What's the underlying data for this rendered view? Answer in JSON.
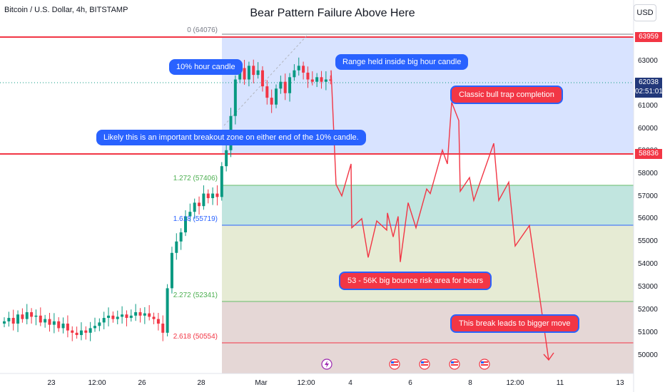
{
  "header": {
    "symbol": "Bitcoin / U.S. Dollar, 4h, BITSTAMP",
    "title": "Bear Pattern Failure Above Here",
    "currency": "USD"
  },
  "chart_data": {
    "type": "candlestick",
    "title": "Bear Pattern Failure Above Here",
    "ylim": [
      49500,
      64900
    ],
    "y_ticks": [
      50000,
      51000,
      52000,
      53000,
      54000,
      55000,
      56000,
      57000,
      58000,
      59000,
      60000,
      61000,
      62000,
      63000
    ],
    "x_ticks": [
      "23",
      "12:00",
      "26",
      "28",
      "Mar",
      "12:00",
      "4",
      "6",
      "8",
      "12:00",
      "11",
      "13"
    ],
    "price_lines": [
      {
        "label": "63959",
        "value": 63959
      },
      {
        "label": "58836",
        "value": 58836
      }
    ],
    "current_price": {
      "value": "62038",
      "countdown": "02:51:01"
    },
    "fib_levels": [
      {
        "label": "0 (64076)",
        "value": 64076
      },
      {
        "label": "1.272 (57406)",
        "value": 57406
      },
      {
        "label": "1.618 (55719)",
        "value": 55719
      },
      {
        "label": "2.272 (52341)",
        "value": 52341
      },
      {
        "label": "2.618 (50554)",
        "value": 50554
      }
    ],
    "projection_path": [
      {
        "x": 464,
        "price": 62500
      },
      {
        "x": 471,
        "price": 57500
      },
      {
        "x": 479,
        "price": 57000
      },
      {
        "x": 492,
        "price": 58400
      },
      {
        "x": 493,
        "price": 55600
      },
      {
        "x": 507,
        "price": 56000
      },
      {
        "x": 516,
        "price": 54300
      },
      {
        "x": 528,
        "price": 55900
      },
      {
        "x": 542,
        "price": 55500
      },
      {
        "x": 543,
        "price": 56250
      },
      {
        "x": 551,
        "price": 55200
      },
      {
        "x": 558,
        "price": 56100
      },
      {
        "x": 561,
        "price": 54100
      },
      {
        "x": 572,
        "price": 56700
      },
      {
        "x": 583,
        "price": 55600
      },
      {
        "x": 598,
        "price": 57300
      },
      {
        "x": 603,
        "price": 57100
      },
      {
        "x": 620,
        "price": 59000
      },
      {
        "x": 627,
        "price": 58400
      },
      {
        "x": 633,
        "price": 61100
      },
      {
        "x": 643,
        "price": 60300
      },
      {
        "x": 645,
        "price": 57200
      },
      {
        "x": 658,
        "price": 57800
      },
      {
        "x": 664,
        "price": 56800
      },
      {
        "x": 692,
        "price": 59300
      },
      {
        "x": 699,
        "price": 56800
      },
      {
        "x": 713,
        "price": 57600
      },
      {
        "x": 722,
        "price": 54800
      },
      {
        "x": 742,
        "price": 55700
      },
      {
        "x": 769,
        "price": 49800
      }
    ],
    "annotations": [
      {
        "text": "10% hour candle"
      },
      {
        "text": "Range held inside big hour candle"
      },
      {
        "text": "Classic bull trap completion"
      },
      {
        "text": "Likely this is an important breakout zone on either end of the 10% candle."
      },
      {
        "text": "53 - 56K big bounce risk area for bears"
      },
      {
        "text": "This break leads to bigger move"
      }
    ]
  }
}
